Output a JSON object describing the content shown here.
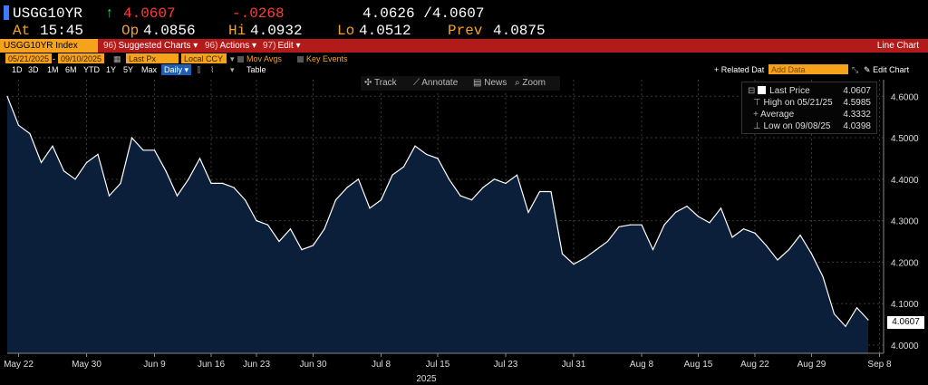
{
  "quote": {
    "ticker": "USGG10YR",
    "arrow": "↑",
    "last": "4.0607",
    "change": "-.0268",
    "bid_ask": "4.0626 /4.0607",
    "at_label": "At",
    "time": "15:45",
    "open_label": "Op",
    "open": "4.0856",
    "high_label": "Hi",
    "high": "4.0932",
    "low_label": "Lo",
    "low": "4.0512",
    "prev_label": "Prev",
    "prev": "4.0875"
  },
  "menubar": {
    "security": "USGG10YR Index",
    "suggested_num": "96)",
    "suggested": "Suggested Charts",
    "actions_num": "96)",
    "actions": "Actions",
    "edit_num": "97)",
    "edit": "Edit",
    "view": "Line Chart"
  },
  "params": {
    "start_date": "05/21/2025",
    "end_date": "09/10/2025",
    "field": "Last Px",
    "currency": "Local CCY",
    "mov_avgs": "Mov Avgs",
    "key_events": "Key Events"
  },
  "rangebar": {
    "ranges": [
      "1D",
      "3D",
      "1M",
      "6M",
      "YTD",
      "1Y",
      "5Y",
      "Max"
    ],
    "period": "Daily",
    "table": "Table",
    "related": "+ Related Dat",
    "add_data_placeholder": "Add Data",
    "edit_chart": "Edit Chart"
  },
  "tools": {
    "track": "Track",
    "annotate": "Annotate",
    "news": "News",
    "zoom": "Zoom"
  },
  "legend": {
    "last_label": "Last Price",
    "last_value": "4.0607",
    "high_label": "High on 05/21/25",
    "high_value": "4.5985",
    "avg_label": "Average",
    "avg_value": "4.3332",
    "low_label": "Low on 09/08/25",
    "low_value": "4.0398"
  },
  "last_tag": "4.0607",
  "colors": {
    "accent": "#f7a21b",
    "menubar": "#b31a1a",
    "area_fill": "#0b1f3a",
    "line": "#ffffff",
    "grid": "#3a3a3a"
  },
  "chart_data": {
    "type": "area",
    "xlabel": "2025",
    "ylabel": "",
    "ylim": [
      3.98,
      4.64
    ],
    "yticks": [
      "4.6000",
      "4.5000",
      "4.4000",
      "4.3000",
      "4.2000",
      "4.1000",
      "4.0000"
    ],
    "yvalues": [
      4.6,
      4.5,
      4.4,
      4.3,
      4.2,
      4.1,
      4.0
    ],
    "xtick_labels": [
      "May 22",
      "May 30",
      "Jun 9",
      "Jun 16",
      "Jun 23",
      "Jun 30",
      "Jul 8",
      "Jul 15",
      "Jul 23",
      "Jul 31",
      "Aug 8",
      "Aug 15",
      "Aug 22",
      "Aug 29",
      "Sep 8"
    ],
    "xtick_index": [
      1,
      7,
      13,
      18,
      22,
      27,
      33,
      38,
      44,
      50,
      56,
      61,
      66,
      71,
      77
    ],
    "grid": true,
    "series": [
      {
        "values": [
          4.6,
          4.53,
          4.51,
          4.44,
          4.48,
          4.42,
          4.4,
          4.44,
          4.46,
          4.36,
          4.39,
          4.5,
          4.47,
          4.47,
          4.42,
          4.36,
          4.4,
          4.45,
          4.39,
          4.39,
          4.38,
          4.35,
          4.3,
          4.29,
          4.25,
          4.28,
          4.23,
          4.24,
          4.28,
          4.35,
          4.38,
          4.4,
          4.33,
          4.35,
          4.41,
          4.43,
          4.48,
          4.46,
          4.45,
          4.4,
          4.36,
          4.35,
          4.38,
          4.4,
          4.39,
          4.41,
          4.32,
          4.37,
          4.37,
          4.22,
          4.195,
          4.21,
          4.23,
          4.25,
          4.285,
          4.29,
          4.29,
          4.23,
          4.29,
          4.32,
          4.335,
          4.31,
          4.295,
          4.33,
          4.26,
          4.28,
          4.27,
          4.24,
          4.205,
          4.23,
          4.265,
          4.22,
          4.165,
          4.075,
          4.045,
          4.09,
          4.0607
        ]
      }
    ]
  }
}
